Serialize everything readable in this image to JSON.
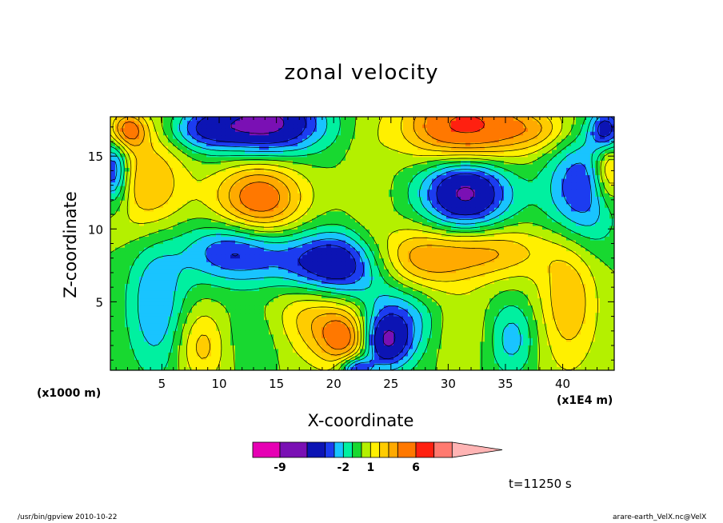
{
  "chart_data": {
    "type": "heatmap",
    "title": "zonal velocity",
    "xlabel": "X-coordinate",
    "ylabel": "Z-coordinate",
    "x_unit_label": "(x1000 m)",
    "x_multiplier_label": "(x1E4 m)",
    "time_label": "t=11250 s",
    "xlim": [
      0.5,
      44.5
    ],
    "ylim": [
      0.3,
      17.7
    ],
    "x_ticks": [
      5,
      10,
      15,
      20,
      25,
      30,
      35,
      40
    ],
    "y_ticks": [
      5,
      10,
      15
    ],
    "levels": [
      -12,
      -9,
      -6,
      -4,
      -3,
      -2,
      -1,
      0,
      1,
      2,
      3,
      4,
      6,
      8,
      10,
      12
    ],
    "colors": [
      "#e600b4",
      "#7a10b4",
      "#0c14b4",
      "#1c3cf0",
      "#19c4ff",
      "#00f0a0",
      "#18d830",
      "#b4f000",
      "#fff000",
      "#ffcc00",
      "#ffaa00",
      "#ff7800",
      "#ff2010",
      "#ff7a70",
      "#ffb4b4"
    ],
    "colorbar_labels": [
      {
        "value": -9,
        "text": "-9"
      },
      {
        "value": -2,
        "text": "-2"
      },
      {
        "value": 1,
        "text": "1"
      },
      {
        "value": 6,
        "text": "6"
      }
    ],
    "features": [
      {
        "x": 20.5,
        "z": 7.5,
        "sx": 3.4,
        "sz": 1.6,
        "a": -7
      },
      {
        "x": 11.5,
        "z": 8.5,
        "sx": 3.2,
        "sz": 1.5,
        "a": -4.5
      },
      {
        "x": 26.5,
        "z": 7.8,
        "sx": 3.4,
        "sz": 1.6,
        "a": 4.2
      },
      {
        "x": 33.5,
        "z": 8.5,
        "sx": 3.5,
        "sz": 1.3,
        "a": 3.2
      },
      {
        "x": 13.5,
        "z": 12,
        "sx": 2.7,
        "sz": 1.9,
        "a": 5.2
      },
      {
        "x": 4,
        "z": 13,
        "sx": 2.2,
        "sz": 2.6,
        "a": 3.2
      },
      {
        "x": 31.5,
        "z": 12.5,
        "sx": 2.7,
        "sz": 1.9,
        "a": -6.5
      },
      {
        "x": 41.5,
        "z": 12.5,
        "sx": 2.2,
        "sz": 2.8,
        "a": -4.2
      },
      {
        "x": 44,
        "z": 14,
        "sx": 0.9,
        "sz": 1.6,
        "a": 3.5
      },
      {
        "x": 0.8,
        "z": 14,
        "sx": 0.9,
        "sz": 1.6,
        "a": -4.5
      },
      {
        "x": 14,
        "z": 17.2,
        "sx": 3.5,
        "sz": 1.5,
        "a": -6.8
      },
      {
        "x": 31.5,
        "z": 17,
        "sx": 3.6,
        "sz": 1.7,
        "a": 6.8
      },
      {
        "x": 8.5,
        "z": 16.8,
        "sx": 2.2,
        "sz": 1,
        "a": -2.8
      },
      {
        "x": 38,
        "z": 16.8,
        "sx": 2.2,
        "sz": 1,
        "a": 2.2
      },
      {
        "x": 2,
        "z": 16.8,
        "sx": 1.2,
        "sz": 0.9,
        "a": 4.5
      },
      {
        "x": 43.8,
        "z": 16.8,
        "sx": 1,
        "sz": 1,
        "a": -4.8
      },
      {
        "x": 4.5,
        "z": 5,
        "sx": 1.8,
        "sz": 3.5,
        "a": -3
      },
      {
        "x": 40.5,
        "z": 5.5,
        "sx": 1.8,
        "sz": 3.5,
        "a": 3
      },
      {
        "x": 18.5,
        "z": 4,
        "sx": 3.5,
        "sz": 2.2,
        "a": 3.5
      },
      {
        "x": 21,
        "z": 2.5,
        "sx": 1.5,
        "sz": 1.3,
        "a": 4
      },
      {
        "x": 25.5,
        "z": 3.5,
        "sx": 3,
        "sz": 2,
        "a": -4.2
      },
      {
        "x": 24.5,
        "z": 2.2,
        "sx": 1.3,
        "sz": 1.2,
        "a": -4
      },
      {
        "x": 35.5,
        "z": 2.5,
        "sx": 1.5,
        "sz": 1.8,
        "a": -2.6
      },
      {
        "x": 8.5,
        "z": 2,
        "sx": 1.5,
        "sz": 1.8,
        "a": 2.5
      },
      {
        "x": 14,
        "z": 3,
        "sx": 2.5,
        "sz": 2,
        "a": -1.6
      },
      {
        "x": 30,
        "z": 3,
        "sx": 2.5,
        "sz": 2,
        "a": 1.7
      },
      {
        "x": 23,
        "z": 12,
        "sx": 1.4,
        "sz": 5,
        "a": 0.8
      },
      {
        "x": 22,
        "z": 0.4,
        "sx": 1,
        "sz": 0.6,
        "a": -4.5
      }
    ]
  },
  "footer": {
    "program": "/usr/bin/gpview  2010-10-22",
    "file": "arare-earth_VelX.nc@VelX"
  }
}
